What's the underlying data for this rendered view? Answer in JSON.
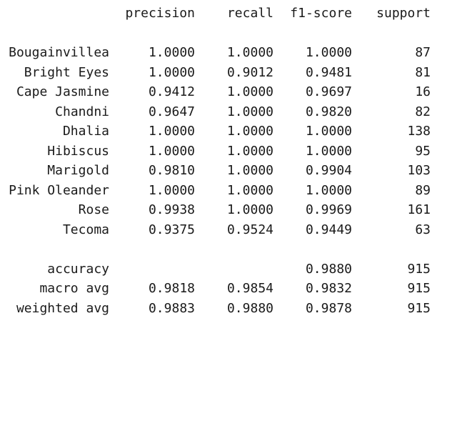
{
  "header": {
    "precision": "precision",
    "recall": "recall",
    "f1": "f1-score",
    "support": "support"
  },
  "classes": [
    {
      "label": "Bougainvillea",
      "precision": "1.0000",
      "recall": "1.0000",
      "f1": "1.0000",
      "support": "87"
    },
    {
      "label": "Bright Eyes",
      "precision": "1.0000",
      "recall": "0.9012",
      "f1": "0.9481",
      "support": "81"
    },
    {
      "label": "Cape Jasmine",
      "precision": "0.9412",
      "recall": "1.0000",
      "f1": "0.9697",
      "support": "16"
    },
    {
      "label": "Chandni",
      "precision": "0.9647",
      "recall": "1.0000",
      "f1": "0.9820",
      "support": "82"
    },
    {
      "label": "Dhalia",
      "precision": "1.0000",
      "recall": "1.0000",
      "f1": "1.0000",
      "support": "138"
    },
    {
      "label": "Hibiscus",
      "precision": "1.0000",
      "recall": "1.0000",
      "f1": "1.0000",
      "support": "95"
    },
    {
      "label": "Marigold",
      "precision": "0.9810",
      "recall": "1.0000",
      "f1": "0.9904",
      "support": "103"
    },
    {
      "label": "Pink Oleander",
      "precision": "1.0000",
      "recall": "1.0000",
      "f1": "1.0000",
      "support": "89"
    },
    {
      "label": "Rose",
      "precision": "0.9938",
      "recall": "1.0000",
      "f1": "0.9969",
      "support": "161"
    },
    {
      "label": "Tecoma",
      "precision": "0.9375",
      "recall": "0.9524",
      "f1": "0.9449",
      "support": "63"
    }
  ],
  "summary": {
    "accuracy": {
      "label": "accuracy",
      "f1": "0.9880",
      "support": "915"
    },
    "macro": {
      "label": "macro avg",
      "precision": "0.9818",
      "recall": "0.9854",
      "f1": "0.9832",
      "support": "915"
    },
    "weighted": {
      "label": "weighted avg",
      "precision": "0.9883",
      "recall": "0.9880",
      "f1": "0.9878",
      "support": "915"
    }
  }
}
